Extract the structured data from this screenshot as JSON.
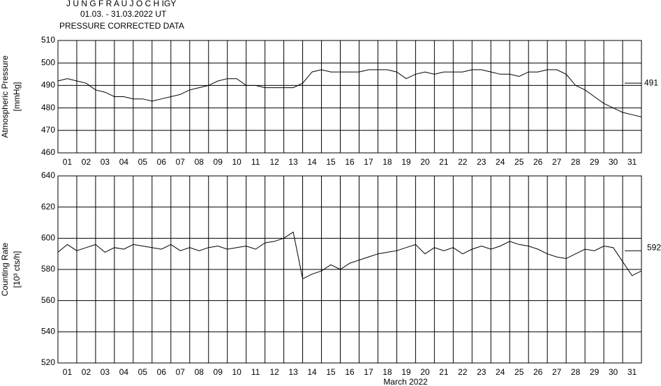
{
  "header": {
    "station": "J U N G F R A U J O C H  IGY",
    "period": "01.03. - 31.03.2022  UT",
    "subtitle": "PRESSURE CORRECTED DATA"
  },
  "chart_data": [
    {
      "type": "line",
      "ylabel": [
        "Atmospheric Pressure",
        "[mmHg]"
      ],
      "color": "#000000",
      "xlim": [
        1,
        32
      ],
      "xticks": [
        {
          "value": 1,
          "label": "01"
        },
        {
          "value": 2,
          "label": "02"
        },
        {
          "value": 3,
          "label": "03"
        },
        {
          "value": 4,
          "label": "04"
        },
        {
          "value": 5,
          "label": "05"
        },
        {
          "value": 6,
          "label": "06"
        },
        {
          "value": 7,
          "label": "07"
        },
        {
          "value": 8,
          "label": "08"
        },
        {
          "value": 9,
          "label": "09"
        },
        10,
        11,
        12,
        13,
        14,
        15,
        16,
        17,
        18,
        19,
        20,
        21,
        22,
        23,
        24,
        25,
        26,
        27,
        28,
        29,
        30,
        31
      ],
      "ylim": [
        460,
        510
      ],
      "yticks": [
        460,
        470,
        480,
        490,
        500,
        510
      ],
      "reference": 491,
      "x": [
        1,
        1.5,
        2,
        2.5,
        3,
        3.5,
        4,
        4.5,
        5,
        5.5,
        6,
        6.5,
        7,
        7.5,
        8,
        8.5,
        9,
        9.5,
        10,
        10.5,
        11,
        11.5,
        12,
        12.5,
        13,
        13.5,
        14,
        14.5,
        15,
        15.5,
        16,
        16.5,
        17,
        17.5,
        18,
        18.5,
        19,
        19.5,
        20,
        20.5,
        21,
        21.5,
        22,
        22.5,
        23,
        23.5,
        24,
        24.5,
        25,
        25.5,
        26,
        26.5,
        27,
        27.5,
        28,
        28.5,
        29,
        29.5,
        30,
        30.5,
        31,
        31.5,
        32
      ],
      "values": [
        492,
        493,
        492,
        491,
        488,
        487,
        485,
        485,
        484,
        484,
        483,
        484,
        485,
        486,
        488,
        489,
        490,
        492,
        493,
        493,
        490,
        490,
        489,
        489,
        489,
        489,
        491,
        496,
        497,
        496,
        496,
        496,
        496,
        497,
        497,
        497,
        496,
        493,
        495,
        496,
        495,
        496,
        496,
        496,
        497,
        497,
        496,
        495,
        495,
        494,
        496,
        496,
        497,
        497,
        495,
        490,
        488,
        485,
        482,
        480,
        478,
        477,
        476
      ]
    },
    {
      "type": "line",
      "ylabel": [
        "Counting Rate",
        "[10³ cts/h]"
      ],
      "xlabel": "March 2022",
      "color": "#000000",
      "xlim": [
        1,
        32
      ],
      "xticks": [
        {
          "value": 1,
          "label": "01"
        },
        {
          "value": 2,
          "label": "02"
        },
        {
          "value": 3,
          "label": "03"
        },
        {
          "value": 4,
          "label": "04"
        },
        {
          "value": 5,
          "label": "05"
        },
        {
          "value": 6,
          "label": "06"
        },
        {
          "value": 7,
          "label": "07"
        },
        {
          "value": 8,
          "label": "08"
        },
        {
          "value": 9,
          "label": "09"
        },
        10,
        11,
        12,
        13,
        14,
        15,
        16,
        17,
        18,
        19,
        20,
        21,
        22,
        23,
        24,
        25,
        26,
        27,
        28,
        29,
        30,
        31
      ],
      "ylim": [
        520,
        640
      ],
      "yticks": [
        520,
        540,
        560,
        580,
        600,
        620,
        640
      ],
      "reference": 592,
      "x": [
        1,
        1.5,
        2,
        2.5,
        3,
        3.5,
        4,
        4.5,
        5,
        5.5,
        6,
        6.5,
        7,
        7.5,
        8,
        8.5,
        9,
        9.5,
        10,
        10.5,
        11,
        11.5,
        12,
        12.5,
        13,
        13.5,
        14,
        14.5,
        15,
        15.5,
        16,
        16.5,
        17,
        17.5,
        18,
        18.5,
        19,
        19.5,
        20,
        20.5,
        21,
        21.5,
        22,
        22.5,
        23,
        23.5,
        24,
        24.5,
        25,
        25.5,
        26,
        26.5,
        27,
        27.5,
        28,
        28.5,
        29,
        29.5,
        30,
        30.5,
        31,
        31.5,
        32
      ],
      "values": [
        591,
        596,
        592,
        594,
        596,
        591,
        594,
        593,
        596,
        595,
        594,
        593,
        596,
        592,
        594,
        592,
        594,
        595,
        593,
        594,
        595,
        593,
        597,
        598,
        600,
        604,
        574,
        577,
        579,
        583,
        580,
        584,
        586,
        588,
        590,
        591,
        592,
        594,
        596,
        590,
        594,
        592,
        594,
        590,
        593,
        595,
        593,
        595,
        598,
        596,
        595,
        593,
        590,
        588,
        587,
        590,
        593,
        592,
        595,
        594,
        585,
        576,
        579
      ]
    }
  ]
}
